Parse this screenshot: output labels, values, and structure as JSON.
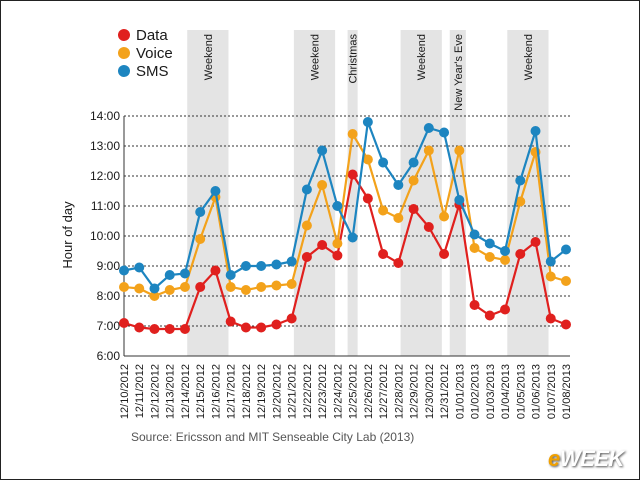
{
  "chart_data": {
    "type": "line",
    "ylabel": "Hour of day",
    "ylim": [
      6,
      14
    ],
    "yticks": [
      "6:00",
      "7:00",
      "8:00",
      "9:00",
      "10:00",
      "11:00",
      "12:00",
      "13:00",
      "14:00"
    ],
    "categories": [
      "12/10/2012",
      "12/11/2012",
      "12/12/2012",
      "12/13/2012",
      "12/14/2012",
      "12/15/2012",
      "12/16/2012",
      "12/17/2012",
      "12/18/2012",
      "12/19/2012",
      "12/20/2012",
      "12/21/2012",
      "12/22/2012",
      "12/23/2012",
      "12/24/2012",
      "12/25/2012",
      "12/26/2012",
      "12/27/2012",
      "12/28/2012",
      "12/29/2012",
      "12/30/2012",
      "12/31/2012",
      "01/01/2013",
      "01/02/2013",
      "01/03/2013",
      "01/04/2013",
      "01/05/2013",
      "01/06/2013",
      "01/07/2013",
      "01/08/2013"
    ],
    "series": [
      {
        "name": "Data",
        "color": "#e0201e",
        "values": [
          7.1,
          6.95,
          6.9,
          6.9,
          6.9,
          8.3,
          8.85,
          7.15,
          6.95,
          6.95,
          7.05,
          7.25,
          9.3,
          9.7,
          9.35,
          12.05,
          11.25,
          9.4,
          9.1,
          10.9,
          10.3,
          9.4,
          11.05,
          7.7,
          7.35,
          7.55,
          9.4,
          9.8,
          7.25,
          7.05
        ]
      },
      {
        "name": "Voice",
        "color": "#f3a21b",
        "values": [
          8.3,
          8.25,
          8.0,
          8.2,
          8.3,
          9.9,
          11.3,
          8.3,
          8.2,
          8.3,
          8.35,
          8.4,
          10.35,
          11.7,
          9.75,
          13.4,
          12.55,
          10.85,
          10.6,
          11.85,
          12.85,
          10.65,
          12.85,
          9.6,
          9.3,
          9.2,
          11.15,
          12.8,
          8.65,
          8.5
        ]
      },
      {
        "name": "SMS",
        "color": "#1d85c0",
        "values": [
          8.85,
          8.95,
          8.25,
          8.7,
          8.75,
          10.8,
          11.5,
          8.7,
          9.0,
          9.0,
          9.05,
          9.15,
          11.55,
          12.85,
          11.0,
          9.95,
          13.8,
          12.45,
          11.7,
          12.45,
          13.6,
          13.45,
          11.2,
          10.05,
          9.75,
          9.5,
          11.85,
          13.5,
          9.15,
          9.55
        ]
      }
    ],
    "bands": [
      {
        "label": "Weekend",
        "start": 5,
        "end": 6
      },
      {
        "label": "Weekend",
        "start": 12,
        "end": 13
      },
      {
        "label": "Christmas",
        "start": 15,
        "end": 15
      },
      {
        "label": "Weekend",
        "start": 19,
        "end": 20
      },
      {
        "label": "New Year's Eve",
        "start": 21.7,
        "end": 22.1
      },
      {
        "label": "Weekend",
        "start": 26,
        "end": 27
      }
    ],
    "legend_position": "top-left",
    "grid": "horizontal-dotted"
  },
  "source": "Source: Ericsson and MIT Senseable City Lab (2013)",
  "logo": {
    "prefix": "e",
    "rest": "WEEK"
  }
}
